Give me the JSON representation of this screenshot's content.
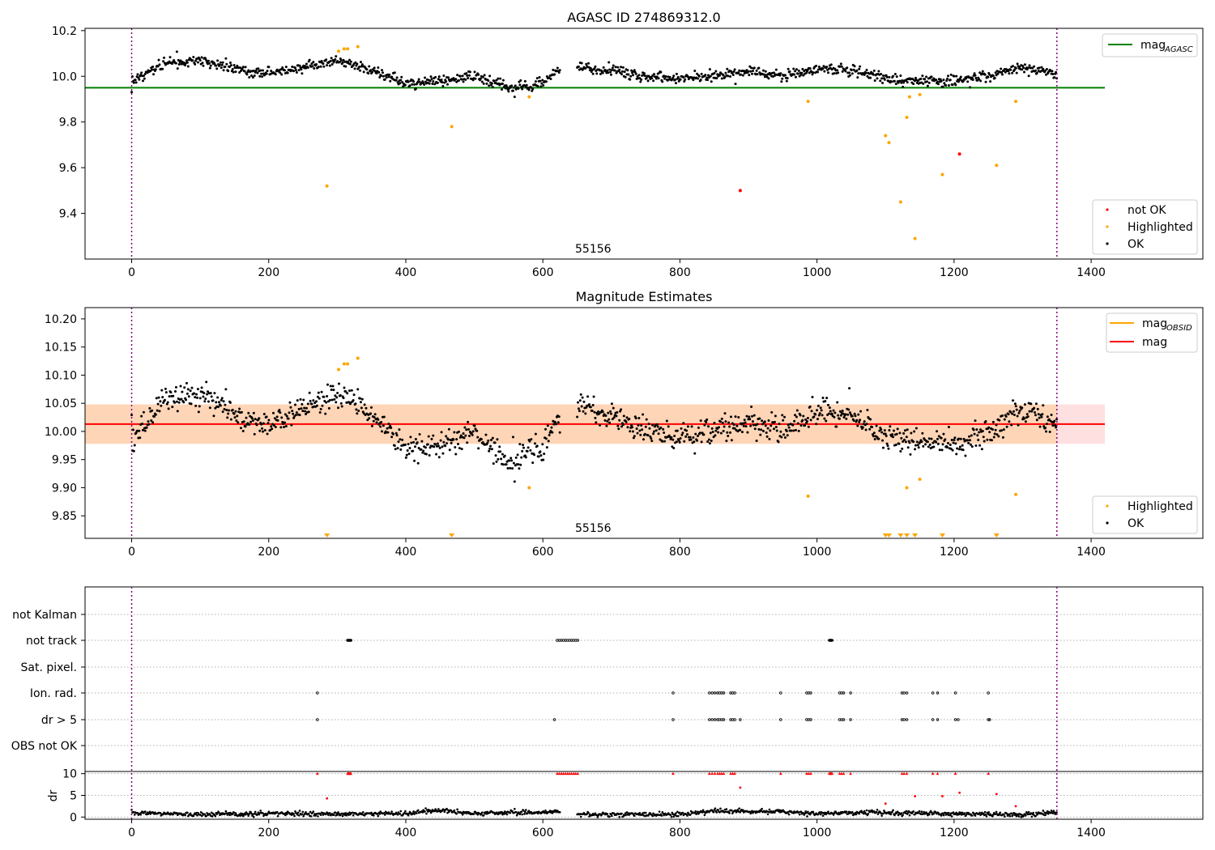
{
  "figure": {
    "panel1_title": "AGASC ID 274869312.0",
    "panel2_title": "Magnitude Estimates",
    "panel1_annotation": "55156",
    "panel2_annotation": "55156"
  },
  "legends": {
    "panel1_top": [
      {
        "label_main": "mag",
        "label_sub": "AGASC",
        "color": "#008000",
        "kind": "line"
      }
    ],
    "panel1_bottom": [
      {
        "label": "not OK",
        "color": "#ff0000",
        "kind": "dot"
      },
      {
        "label": "Highlighted",
        "color": "#ffa500",
        "kind": "dot"
      },
      {
        "label": "OK",
        "color": "#000000",
        "kind": "dot"
      }
    ],
    "panel2_top": [
      {
        "label_main": "mag",
        "label_sub": "OBSID",
        "color": "#ffa500",
        "kind": "line"
      },
      {
        "label_main": "mag",
        "label_sub": "",
        "color": "#ff0000",
        "kind": "line"
      }
    ],
    "panel2_bottom": [
      {
        "label": "Highlighted",
        "color": "#ffa500",
        "kind": "dot"
      },
      {
        "label": "OK",
        "color": "#000000",
        "kind": "dot"
      }
    ]
  },
  "chart_data": [
    {
      "type": "scatter",
      "title": "AGASC ID 274869312.0",
      "xlabel": "",
      "ylabel": "",
      "xlim": [
        -68,
        1563
      ],
      "ylim": [
        9.2,
        10.21
      ],
      "xticks": [
        0,
        200,
        400,
        600,
        800,
        1000,
        1200,
        1400
      ],
      "yticks": [
        9.4,
        9.6,
        9.8,
        10.0,
        10.2
      ],
      "ytick_labels": [
        "9.4",
        "9.6",
        "9.8",
        "10.0",
        "10.2"
      ],
      "vlines": [
        0,
        1350
      ],
      "hline": {
        "name": "mag_AGASC",
        "y": 9.95,
        "x_range": [
          -68,
          1420
        ],
        "color": "#008000"
      },
      "trend": {
        "x": [
          0,
          50,
          100,
          150,
          200,
          250,
          300,
          350,
          400,
          450,
          500,
          550,
          600,
          620,
          650,
          700,
          750,
          800,
          850,
          900,
          950,
          1000,
          1050,
          1100,
          1150,
          1200,
          1250,
          1300,
          1350
        ],
        "y": [
          9.98,
          10.06,
          10.07,
          10.03,
          10.01,
          10.04,
          10.07,
          10.03,
          9.97,
          9.98,
          10.0,
          9.95,
          9.97,
          10.02,
          10.04,
          10.03,
          10.0,
          9.99,
          10.0,
          10.02,
          10.0,
          10.03,
          10.03,
          9.99,
          9.98,
          9.98,
          10.0,
          10.04,
          10.01
        ],
        "gaps": [
          [
            625,
            650
          ]
        ],
        "noise": 0.012
      },
      "series": [
        {
          "name": "Highlighted",
          "color": "#ffa500",
          "x": [
            285,
            302,
            310,
            315,
            330,
            467,
            580,
            987,
            1100,
            1105,
            1122,
            1131,
            1135,
            1143,
            1150,
            1183,
            1262,
            1290
          ],
          "y": [
            9.52,
            10.11,
            10.12,
            10.12,
            10.13,
            9.78,
            9.91,
            9.89,
            9.74,
            9.71,
            9.45,
            9.82,
            9.91,
            9.29,
            9.92,
            9.57,
            9.61,
            9.89
          ]
        },
        {
          "name": "not OK",
          "color": "#ff0000",
          "x": [
            888,
            1208
          ],
          "y": [
            9.5,
            9.66
          ]
        }
      ]
    },
    {
      "type": "scatter",
      "title": "Magnitude Estimates",
      "xlabel": "",
      "ylabel": "",
      "xlim": [
        -68,
        1563
      ],
      "ylim": [
        9.81,
        10.22
      ],
      "xticks": [
        0,
        200,
        400,
        600,
        800,
        1000,
        1200,
        1400
      ],
      "yticks": [
        9.85,
        9.9,
        9.95,
        10.0,
        10.05,
        10.1,
        10.15,
        10.2
      ],
      "ytick_labels": [
        "9.85",
        "9.90",
        "9.95",
        "10.00",
        "10.05",
        "10.10",
        "10.15",
        "10.20"
      ],
      "vlines": [
        0,
        1350
      ],
      "mag_line": {
        "name": "mag",
        "y": 10.013,
        "x_range": [
          -68,
          1420
        ],
        "color": "#ff0000"
      },
      "mag_band": {
        "y_low": 9.978,
        "y_high": 10.048,
        "x_range": [
          -68,
          1420
        ]
      },
      "obsid_band": {
        "y_low": 9.978,
        "y_high": 10.048,
        "x_range": [
          -68,
          1350
        ]
      },
      "trend": {
        "x": [
          0,
          50,
          100,
          150,
          200,
          250,
          300,
          350,
          400,
          450,
          500,
          550,
          600,
          620,
          650,
          700,
          750,
          800,
          850,
          900,
          950,
          1000,
          1050,
          1100,
          1150,
          1200,
          1250,
          1300,
          1350
        ],
        "y": [
          9.98,
          10.06,
          10.07,
          10.03,
          10.01,
          10.04,
          10.07,
          10.03,
          9.97,
          9.98,
          10.0,
          9.95,
          9.97,
          10.02,
          10.04,
          10.03,
          10.0,
          9.99,
          10.0,
          10.02,
          10.0,
          10.03,
          10.03,
          9.99,
          9.98,
          9.98,
          10.0,
          10.04,
          10.01
        ],
        "gaps": [
          [
            625,
            650
          ]
        ],
        "noise": 0.012
      },
      "series": [
        {
          "name": "Highlighted",
          "color": "#ffa500",
          "x": [
            302,
            310,
            315,
            330,
            580,
            987,
            1131,
            1150,
            1290
          ],
          "y": [
            10.11,
            10.12,
            10.12,
            10.13,
            9.9,
            9.885,
            9.9,
            9.915,
            9.888
          ]
        }
      ],
      "offscale_markers": {
        "color": "#ffa500",
        "x": [
          285,
          467,
          1100,
          1105,
          1122,
          1131,
          1143,
          1183,
          1262
        ]
      }
    },
    {
      "type": "scatter",
      "title": "",
      "xlabel": "",
      "ylabel": "",
      "xlim": [
        -68,
        1563
      ],
      "xticks": [
        0,
        200,
        400,
        600,
        800,
        1000,
        1200,
        1400
      ],
      "vlines": [
        0,
        1350
      ],
      "flag_rows": [
        "not Kalman",
        "not track",
        "Sat. pixel.",
        "Ion. rad.",
        "dr > 5",
        "OBS not OK"
      ],
      "flags": {
        "not Kalman": [],
        "not track": [
          315,
          316,
          317,
          318,
          319,
          320,
          621,
          624,
          627,
          630,
          633,
          636,
          639,
          642,
          645,
          648,
          651,
          1018,
          1019,
          1020,
          1021,
          1022
        ],
        "Sat. pixel.": [],
        "Ion. rad.": [
          271,
          790,
          843,
          847,
          851,
          855,
          858,
          861,
          864,
          874,
          877,
          880,
          947,
          985,
          988,
          991,
          1033,
          1036,
          1039,
          1049,
          1124,
          1127,
          1131,
          1169,
          1176,
          1202,
          1250
        ],
        "dr > 5": [
          271,
          617,
          790,
          843,
          847,
          851,
          855,
          858,
          861,
          864,
          874,
          877,
          880,
          888,
          947,
          985,
          988,
          991,
          1033,
          1036,
          1039,
          1049,
          1124,
          1127,
          1131,
          1169,
          1176,
          1202,
          1206,
          1250,
          1252
        ],
        "OBS not OK": []
      },
      "dr": {
        "ylabel": "dr",
        "ylim": [
          -0.5,
          10.5
        ],
        "yticks": [
          0,
          5,
          10
        ],
        "ytick_labels": [
          "0",
          "5",
          "10"
        ],
        "baseline_trend": {
          "x": [
            0,
            100,
            200,
            300,
            400,
            450,
            500,
            600,
            620,
            650,
            800,
            850,
            950,
            1000,
            1050,
            1100,
            1200,
            1300,
            1350
          ],
          "y": [
            1.0,
            0.6,
            0.8,
            0.7,
            0.8,
            1.6,
            0.8,
            1.1,
            1.3,
            0.6,
            0.6,
            1.4,
            1.2,
            0.8,
            1.0,
            1.0,
            0.7,
            0.6,
            1.1
          ],
          "gaps": [
            [
              625,
              650
            ]
          ],
          "noise": 0.25
        },
        "clipped": {
          "color": "#ff0000",
          "x": [
            271,
            315,
            316,
            317,
            318,
            319,
            320,
            621,
            624,
            627,
            630,
            633,
            636,
            639,
            642,
            645,
            648,
            651,
            790,
            843,
            847,
            851,
            855,
            858,
            861,
            864,
            874,
            877,
            880,
            947,
            985,
            988,
            991,
            1018,
            1019,
            1020,
            1021,
            1022,
            1033,
            1036,
            1039,
            1049,
            1124,
            1127,
            1131,
            1169,
            1176,
            1202,
            1250
          ]
        },
        "outliers": {
          "color": "#ff0000",
          "x": [
            285,
            888,
            1100,
            1143,
            1183,
            1208,
            1262,
            1290
          ],
          "y": [
            4.3,
            6.8,
            3.1,
            4.8,
            4.8,
            5.6,
            5.3,
            2.5
          ]
        }
      }
    }
  ]
}
